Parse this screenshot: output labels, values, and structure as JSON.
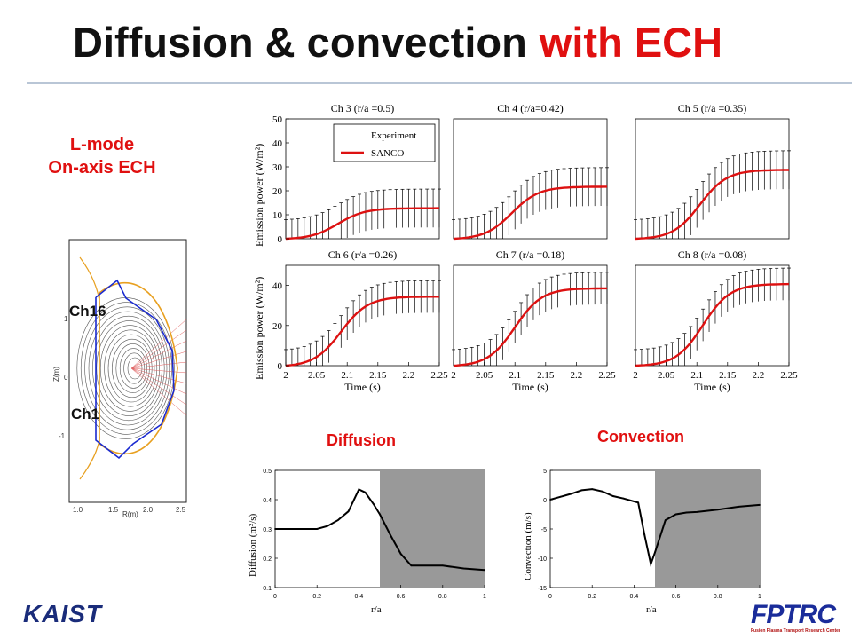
{
  "header": {
    "title_main": "Diffusion & convection",
    "title_accent": "with ECH"
  },
  "condition": {
    "line1": "L-mode",
    "line2": "On-axis ECH"
  },
  "equilibrium": {
    "ch_top": "Ch16",
    "ch_bottom": "Ch1",
    "ylabel": "Z(m)",
    "xlabel": "R(m)",
    "yticks": [
      "1",
      "0",
      "-1"
    ],
    "xticks": [
      "1.0",
      "1.5",
      "2.0",
      "2.5"
    ]
  },
  "legend": {
    "experiment": "Experiment",
    "model": "SANCO"
  },
  "panel_labels": {
    "diffusion": "Diffusion",
    "convection": "Convection"
  },
  "logos": {
    "left": "KAIST",
    "right": "FPTRC",
    "right_sub": "Fusion Plasma Transport Research Center"
  },
  "colors": {
    "accent": "#e01010",
    "model_line": "#dd1111",
    "shade": "#999999",
    "flux_orange": "#e8a020",
    "limiter": "#1a2ad0"
  },
  "chart_data": [
    {
      "type": "line",
      "panels": [
        {
          "title": "Ch 3 (r/a =0.5)",
          "final": 13,
          "t50": 2.085
        },
        {
          "title": "Ch 4 (r/a=0.42)",
          "final": 22,
          "t50": 2.095
        },
        {
          "title": "Ch 5 (r/a =0.35)",
          "final": 29,
          "t50": 2.105
        },
        {
          "title": "Ch 6 (r/a =0.26)",
          "final": 35,
          "t50": 2.09
        },
        {
          "title": "Ch 7 (r/a =0.18)",
          "final": 39,
          "t50": 2.1
        },
        {
          "title": "Ch 8 (r/a =0.08)",
          "final": 41,
          "t50": 2.11
        }
      ],
      "xlim": [
        2,
        2.25
      ],
      "xticks": [
        "2",
        "2.05",
        "2.1",
        "2.15",
        "2.2",
        "2.25"
      ],
      "top_ylim": [
        0,
        50
      ],
      "top_yticks": [
        "0",
        "10",
        "20",
        "30",
        "40",
        "50"
      ],
      "bottom_ylim": [
        0,
        50
      ],
      "bottom_yticks": [
        "0",
        "20",
        "40"
      ],
      "xlabel": "Time (s)",
      "ylabel": "Emission power (W/m²)",
      "series": [
        {
          "name": "Experiment"
        },
        {
          "name": "SANCO"
        }
      ],
      "legend_position": "top-left (first panel)"
    },
    {
      "type": "line",
      "x": [
        0,
        0.1,
        0.2,
        0.25,
        0.3,
        0.35,
        0.4,
        0.43,
        0.47,
        0.5,
        0.55,
        0.6,
        0.65,
        0.7,
        0.8,
        0.9,
        1.0
      ],
      "y": [
        0.3,
        0.3,
        0.3,
        0.31,
        0.33,
        0.36,
        0.435,
        0.425,
        0.385,
        0.35,
        0.28,
        0.215,
        0.175,
        0.175,
        0.175,
        0.165,
        0.16
      ],
      "xlim": [
        0,
        1
      ],
      "ylim": [
        0.1,
        0.5
      ],
      "xticks": [
        "0",
        "0.2",
        "0.4",
        "0.6",
        "0.8",
        "1"
      ],
      "yticks": [
        "0.1",
        "0.2",
        "0.3",
        "0.4",
        "0.5"
      ],
      "xlabel": "r/a",
      "ylabel": "Diffusion (m²/s)",
      "shaded_from": 0.5
    },
    {
      "type": "line",
      "x": [
        0,
        0.05,
        0.1,
        0.15,
        0.2,
        0.25,
        0.3,
        0.35,
        0.4,
        0.42,
        0.45,
        0.48,
        0.5,
        0.55,
        0.6,
        0.65,
        0.7,
        0.8,
        0.9,
        1.0
      ],
      "y": [
        0,
        0.5,
        1.0,
        1.6,
        1.8,
        1.4,
        0.6,
        0.2,
        -0.3,
        -0.5,
        -6.0,
        -11.0,
        -9.0,
        -3.5,
        -2.5,
        -2.2,
        -2.1,
        -1.7,
        -1.2,
        -0.9
      ],
      "xlim": [
        0,
        1
      ],
      "ylim": [
        -15,
        5
      ],
      "xticks": [
        "0",
        "0.2",
        "0.4",
        "0.6",
        "0.8",
        "1"
      ],
      "yticks": [
        "-15",
        "-10",
        "-5",
        "0",
        "5"
      ],
      "xlabel": "r/a",
      "ylabel": "Convection (m/s)",
      "shaded_from": 0.5
    }
  ]
}
